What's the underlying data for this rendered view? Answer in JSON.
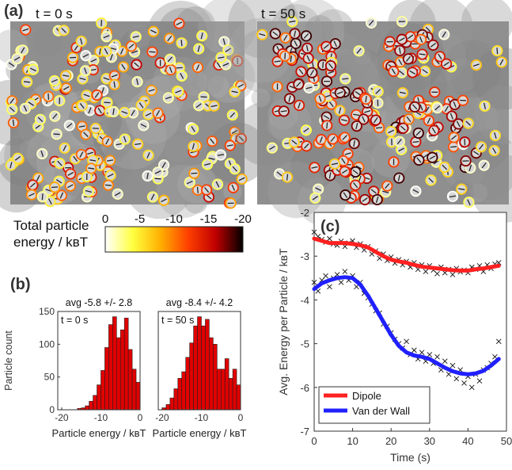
{
  "panel_a": {
    "label": "(a)",
    "left_time": "t = 0 s",
    "right_time": "t = 50 s",
    "colorbar": {
      "title_line1": "Total particle",
      "title_line2": "energy / kʙT",
      "ticks": [
        "0",
        "-5",
        "-10",
        "-15",
        "-20"
      ],
      "colors": [
        "#ffffff",
        "#ffff40",
        "#ffb000",
        "#ff4000",
        "#c00000",
        "#000000"
      ]
    }
  },
  "panel_b": {
    "label": "(b)",
    "ylabel": "Particle count",
    "xlabel": "Particle energy / kʙT",
    "left_title": "avg -5.8 +/- 2.8",
    "right_title": "avg -8.4 +/- 4.2",
    "left_time": "t = 0 s",
    "right_time": "t = 50 s"
  },
  "panel_c": {
    "label": "(c)",
    "legend": [
      "Dipole",
      "Van der Wall"
    ]
  },
  "chart_data": [
    {
      "type": "bar",
      "panel": "b-left",
      "title": "avg -5.8 +/- 2.8",
      "annotation": "t = 0 s",
      "xlabel": "Particle energy / kʙT",
      "ylabel": "Particle count",
      "xlim": [
        -21,
        0
      ],
      "ylim": [
        0,
        150
      ],
      "xticks": [
        -20,
        -10,
        0
      ],
      "yticks": [
        0,
        50,
        100,
        150
      ],
      "bin_width": 1,
      "bin_centers": [
        -15.5,
        -14.5,
        -13.5,
        -12.5,
        -11.5,
        -10.5,
        -9.5,
        -8.5,
        -7.5,
        -6.5,
        -5.5,
        -4.5,
        -3.5,
        -2.5,
        -1.5,
        -0.5
      ],
      "values": [
        2,
        3,
        6,
        13,
        22,
        38,
        60,
        95,
        130,
        142,
        110,
        122,
        140,
        92,
        62,
        42
      ],
      "color": "#e00000"
    },
    {
      "type": "bar",
      "panel": "b-right",
      "title": "avg -8.4 +/- 4.2",
      "annotation": "t = 50 s",
      "xlabel": "Particle energy / kʙT",
      "xlim": [
        -21,
        0
      ],
      "ylim": [
        0,
        150
      ],
      "xticks": [
        -20,
        -10,
        0
      ],
      "bin_width": 1,
      "bin_centers": [
        -19.5,
        -18.5,
        -17.5,
        -16.5,
        -15.5,
        -14.5,
        -13.5,
        -12.5,
        -11.5,
        -10.5,
        -9.5,
        -8.5,
        -7.5,
        -6.5,
        -5.5,
        -4.5,
        -3.5,
        -2.5,
        -1.5,
        -0.5
      ],
      "values": [
        3,
        8,
        18,
        32,
        48,
        58,
        80,
        102,
        128,
        142,
        128,
        138,
        110,
        100,
        62,
        62,
        78,
        48,
        62,
        38
      ],
      "color": "#e00000"
    },
    {
      "type": "line",
      "panel": "c",
      "xlabel": "Time (s)",
      "ylabel": "Avg. Energy per Particle / kʙT",
      "xlim": [
        0,
        50
      ],
      "ylim": [
        -7,
        -2
      ],
      "xticks": [
        0,
        10,
        20,
        30,
        40,
        50
      ],
      "yticks": [
        -7,
        -6,
        -5,
        -4,
        -3,
        -2
      ],
      "legend_position": "bottom-left",
      "series": [
        {
          "name": "Dipole",
          "color": "#ff2020",
          "x": [
            0,
            2,
            4,
            6,
            8,
            10,
            12,
            14,
            16,
            18,
            20,
            22,
            24,
            26,
            28,
            30,
            32,
            34,
            36,
            38,
            40,
            42,
            44,
            46,
            48
          ],
          "y": [
            -2.6,
            -2.65,
            -2.7,
            -2.7,
            -2.7,
            -2.72,
            -2.75,
            -2.8,
            -2.9,
            -3.0,
            -3.08,
            -3.12,
            -3.15,
            -3.2,
            -3.24,
            -3.26,
            -3.28,
            -3.3,
            -3.32,
            -3.33,
            -3.33,
            -3.3,
            -3.28,
            -3.25,
            -3.22
          ]
        },
        {
          "name": "Van der Wall",
          "color": "#2020ff",
          "x": [
            0,
            2,
            4,
            6,
            8,
            10,
            12,
            14,
            16,
            18,
            20,
            22,
            24,
            26,
            28,
            30,
            32,
            34,
            36,
            38,
            40,
            42,
            44,
            46,
            48
          ],
          "y": [
            -3.75,
            -3.62,
            -3.55,
            -3.5,
            -3.48,
            -3.5,
            -3.65,
            -3.9,
            -4.2,
            -4.5,
            -4.8,
            -5.05,
            -5.2,
            -5.27,
            -5.3,
            -5.35,
            -5.45,
            -5.55,
            -5.63,
            -5.68,
            -5.7,
            -5.68,
            -5.62,
            -5.5,
            -5.35
          ]
        },
        {
          "name": "Dipole raw",
          "marker": "x",
          "color": "#111111",
          "x": [
            0,
            1,
            2,
            3,
            4,
            5,
            6,
            7,
            8,
            9,
            10,
            11,
            12,
            13,
            14,
            15,
            16,
            17,
            18,
            19,
            20,
            21,
            22,
            23,
            24,
            25,
            26,
            27,
            28,
            29,
            30,
            31,
            32,
            33,
            34,
            35,
            36,
            37,
            38,
            39,
            40,
            41,
            42,
            43,
            44,
            45,
            46,
            47,
            48
          ],
          "y": [
            -2.45,
            -2.55,
            -2.62,
            -2.68,
            -2.6,
            -2.72,
            -2.75,
            -2.66,
            -2.78,
            -2.7,
            -2.65,
            -2.8,
            -2.72,
            -2.86,
            -2.78,
            -2.95,
            -2.88,
            -3.05,
            -2.95,
            -3.1,
            -3.02,
            -3.16,
            -3.08,
            -3.2,
            -3.12,
            -3.25,
            -3.15,
            -3.3,
            -3.2,
            -3.35,
            -3.22,
            -3.32,
            -3.4,
            -3.25,
            -3.38,
            -3.3,
            -3.42,
            -3.28,
            -3.36,
            -3.32,
            -3.38,
            -3.25,
            -3.3,
            -3.22,
            -3.35,
            -3.2,
            -3.28,
            -3.18,
            -3.15
          ]
        },
        {
          "name": "Van der Wall raw",
          "marker": "x",
          "color": "#111111",
          "x": [
            0,
            1,
            2,
            3,
            4,
            5,
            6,
            7,
            8,
            9,
            10,
            11,
            12,
            13,
            14,
            15,
            16,
            17,
            18,
            19,
            20,
            21,
            22,
            23,
            24,
            25,
            26,
            27,
            28,
            29,
            30,
            31,
            32,
            33,
            34,
            35,
            36,
            37,
            38,
            39,
            40,
            41,
            42,
            43,
            44,
            45,
            46,
            47,
            48
          ],
          "y": [
            -3.6,
            -3.8,
            -3.55,
            -3.45,
            -3.7,
            -3.5,
            -3.42,
            -3.6,
            -3.35,
            -3.55,
            -3.45,
            -3.7,
            -3.6,
            -3.85,
            -3.95,
            -4.1,
            -4.25,
            -4.3,
            -4.55,
            -4.6,
            -4.75,
            -4.9,
            -5.0,
            -5.1,
            -4.95,
            -5.25,
            -5.15,
            -5.35,
            -5.2,
            -5.4,
            -5.25,
            -5.45,
            -5.3,
            -5.6,
            -5.4,
            -5.7,
            -5.5,
            -5.8,
            -5.6,
            -5.9,
            -5.75,
            -6.0,
            -5.7,
            -5.85,
            -5.6,
            -5.55,
            -5.45,
            -5.3,
            -4.95
          ]
        }
      ]
    }
  ]
}
